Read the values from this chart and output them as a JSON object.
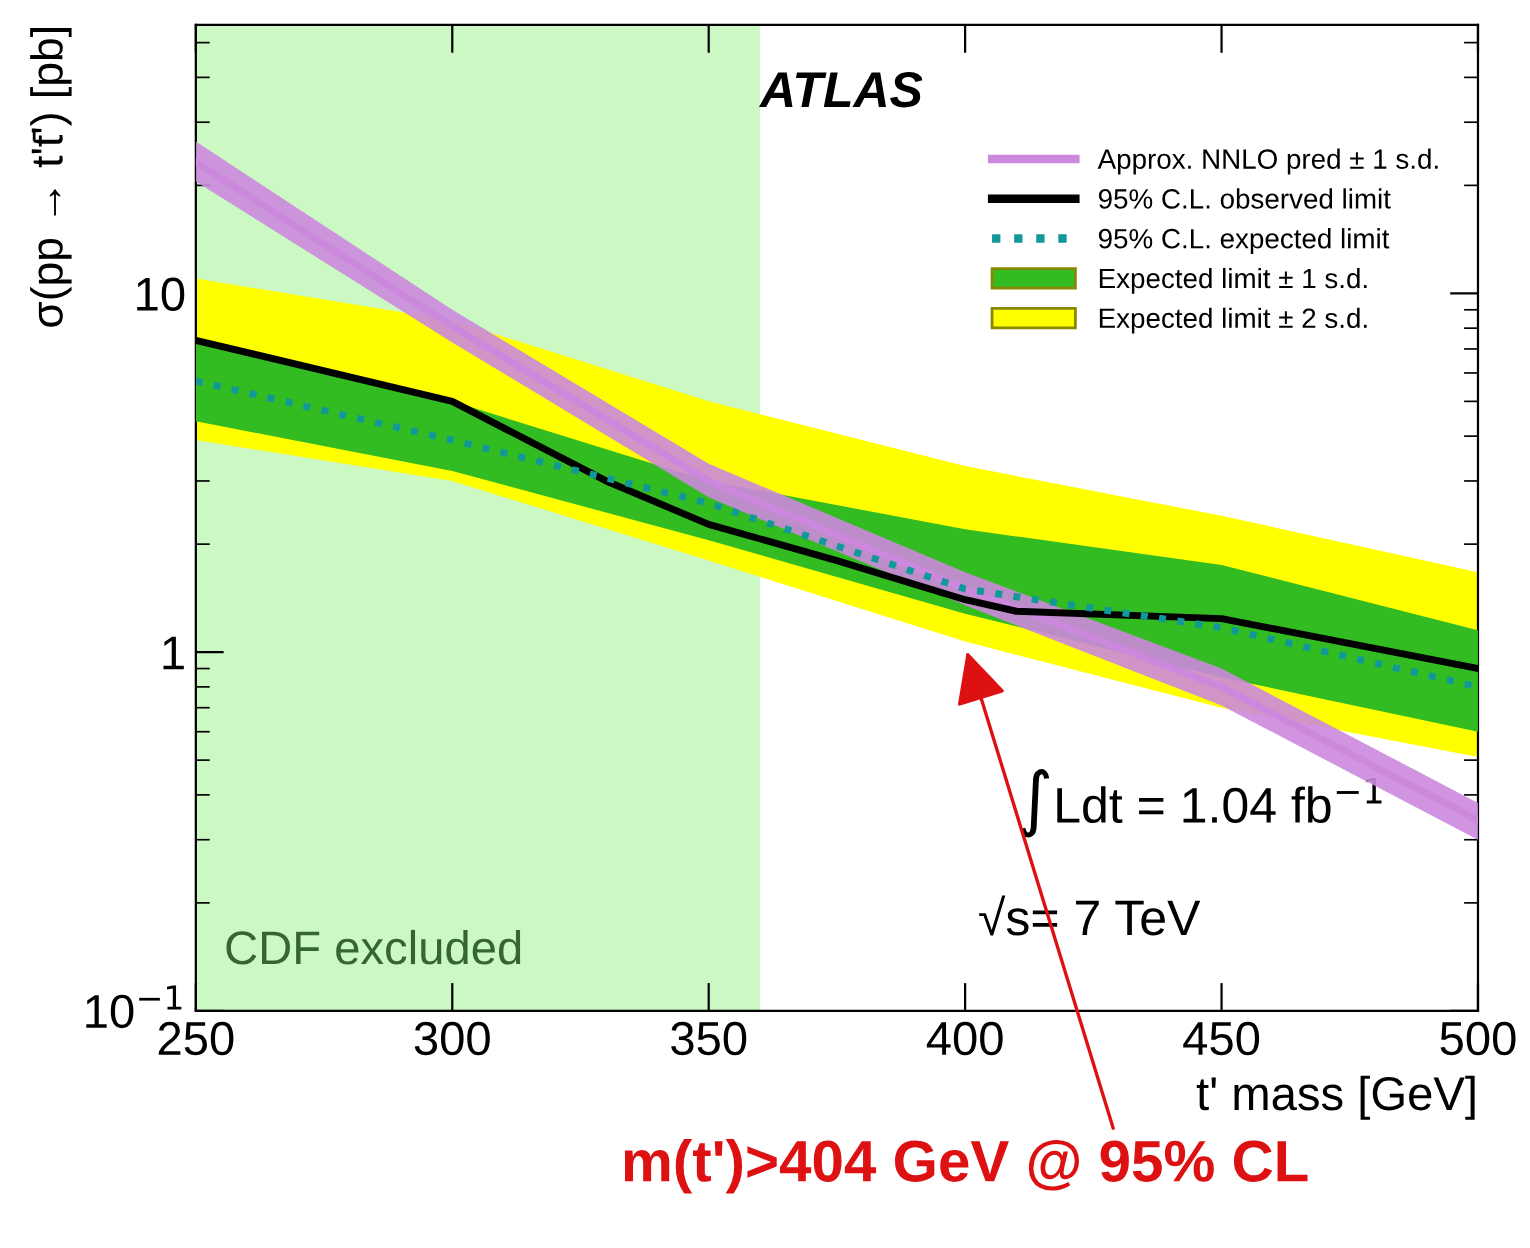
{
  "chart_data": {
    "type": "line",
    "xlabel": "t' mass [GeV]",
    "ylabel": "σ(pp → t't̄') [pb]",
    "x": [
      250,
      300,
      350,
      400,
      450,
      500
    ],
    "series": [
      {
        "name": "Expected limit ± 2 s.d.",
        "type": "area",
        "color": "#ffff00",
        "values": [
          null,
          null,
          null,
          null,
          null,
          null
        ],
        "lower": [
          3.9,
          3.0,
          1.8,
          1.07,
          0.7,
          0.51
        ],
        "upper": [
          11,
          8.4,
          5.0,
          3.3,
          2.4,
          1.67
        ]
      },
      {
        "name": "Expected limit ± 1 s.d.",
        "type": "area",
        "color": "#33bb22",
        "values": [
          null,
          null,
          null,
          null,
          null,
          null
        ],
        "lower": [
          4.4,
          3.2,
          2.05,
          1.28,
          0.85,
          0.6
        ],
        "upper": [
          7.5,
          5.0,
          3.0,
          2.2,
          1.75,
          1.15
        ]
      },
      {
        "name": "Approx. NNLO pred ± 1 s.d.",
        "type": "line",
        "color": "#cc88dd",
        "values": [
          23.2,
          8.1,
          3.0,
          1.5,
          0.8,
          0.34
        ],
        "lower": [
          20.5,
          7.3,
          2.7,
          1.35,
          0.71,
          0.3
        ],
        "upper": [
          26.5,
          9.0,
          3.35,
          1.67,
          0.9,
          0.38
        ]
      },
      {
        "name": "95% C.L. observed limit",
        "color": "#000000",
        "line_style": "solid",
        "x": [
          250,
          300,
          330,
          350,
          375,
          400,
          410,
          450,
          500
        ],
        "values": [
          7.4,
          5.0,
          3.0,
          2.27,
          1.8,
          1.4,
          1.3,
          1.24,
          0.9
        ]
      },
      {
        "name": "95% C.L. expected limit",
        "color": "#119999",
        "line_style": "dotted",
        "values": [
          5.7,
          3.9,
          2.6,
          1.5,
          1.17,
          0.8
        ]
      }
    ],
    "bands": [
      {
        "axis": "x",
        "from": 250,
        "to": 360,
        "label": "CDF excluded",
        "color": "#ccf8c4"
      }
    ],
    "annotations": [
      "ATLAS",
      "∫Ldt = 1.04 fb$^{−1}$",
      "√s= 7 TeV",
      "m(t')>404 GeV @ 95% CL"
    ],
    "log": "y",
    "xlim": [
      250,
      500
    ],
    "ylim": [
      0.1,
      56
    ],
    "xticks": [
      250,
      300,
      350,
      400,
      450,
      500
    ],
    "yticks": [
      {
        "value": 0.1,
        "label": "10$^{−1}$"
      },
      1,
      10
    ],
    "legend": "top right",
    "grid": false
  }
}
